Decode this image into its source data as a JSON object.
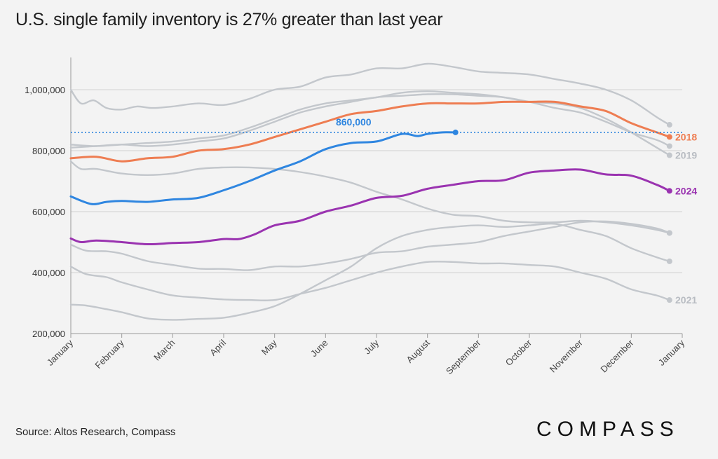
{
  "title": "U.S. single family inventory is 27% greater than last year",
  "source": "Source: Altos Research, Compass",
  "brand": "COMPASS",
  "colors": {
    "gray": "#c3c7cc",
    "orange": "#ee7d52",
    "blue": "#2f86e0",
    "purple": "#9a33b0",
    "reference": "#2f86e0",
    "gray_label": "#b8bcc2"
  },
  "chart_data": {
    "type": "line",
    "title": "U.S. single family inventory is 27% greater than last year",
    "xlabel": "",
    "ylabel": "",
    "ylim": [
      180000,
      1120000
    ],
    "x_domain": [
      0,
      12
    ],
    "y_ticks": [
      200000,
      400000,
      600000,
      800000,
      1000000
    ],
    "y_tick_labels": [
      "200,000",
      "400,000",
      "600,000",
      "800,000",
      "1,000,000"
    ],
    "x_ticks": [
      0,
      1,
      2,
      3,
      4,
      5,
      6,
      7,
      8,
      9,
      10,
      11,
      12
    ],
    "x_tick_labels": [
      "January",
      "February",
      "March",
      "April",
      "May",
      "June",
      "July",
      "August",
      "September",
      "October",
      "November",
      "December",
      "January"
    ],
    "reference_line": {
      "value": 860000,
      "label": "860,000"
    },
    "grid": true,
    "series": [
      {
        "name": "",
        "style": "gray",
        "end_marker": true,
        "x": [
          0,
          0.2,
          0.45,
          0.7,
          1,
          1.3,
          1.6,
          2,
          2.5,
          3,
          3.5,
          4,
          4.5,
          5,
          5.5,
          6,
          6.5,
          7,
          7.5,
          8,
          8.5,
          9,
          9.5,
          10,
          10.5,
          11,
          11.5,
          11.75
        ],
        "values": [
          1000000,
          955000,
          965000,
          940000,
          935000,
          945000,
          940000,
          945000,
          955000,
          950000,
          970000,
          1000000,
          1010000,
          1040000,
          1050000,
          1070000,
          1070000,
          1085000,
          1075000,
          1060000,
          1055000,
          1050000,
          1035000,
          1020000,
          1000000,
          965000,
          910000,
          885000
        ]
      },
      {
        "name": "2018",
        "label": "2018",
        "style": "orange",
        "end_marker": true,
        "x": [
          0,
          0.5,
          1,
          1.5,
          2,
          2.5,
          3,
          3.5,
          4,
          4.5,
          5,
          5.5,
          6,
          6.5,
          7,
          7.5,
          8,
          8.5,
          9,
          9.5,
          10,
          10.5,
          11,
          11.5,
          11.75
        ],
        "values": [
          775000,
          780000,
          765000,
          775000,
          780000,
          800000,
          805000,
          820000,
          845000,
          870000,
          895000,
          920000,
          930000,
          945000,
          955000,
          955000,
          955000,
          960000,
          960000,
          960000,
          945000,
          930000,
          890000,
          860000,
          845000
        ]
      },
      {
        "name": "2019",
        "label": "2019",
        "style": "gray",
        "end_marker": true,
        "x": [
          0,
          0.5,
          1,
          1.5,
          2,
          2.5,
          3,
          3.5,
          4,
          4.5,
          5,
          5.5,
          6,
          6.5,
          7,
          7.5,
          8,
          8.5,
          9,
          9.5,
          10,
          10.5,
          11,
          11.5,
          11.75
        ],
        "values": [
          820000,
          815000,
          820000,
          825000,
          830000,
          840000,
          850000,
          875000,
          905000,
          935000,
          955000,
          965000,
          975000,
          990000,
          995000,
          990000,
          985000,
          975000,
          960000,
          955000,
          940000,
          905000,
          860000,
          810000,
          785000
        ]
      },
      {
        "name": "",
        "style": "gray",
        "end_marker": true,
        "x": [
          0,
          0.5,
          1,
          1.5,
          2,
          2.5,
          3,
          3.5,
          4,
          4.5,
          5,
          5.5,
          6,
          6.5,
          7,
          7.5,
          8,
          8.5,
          9,
          9.5,
          10,
          10.5,
          11,
          11.5,
          11.75
        ],
        "values": [
          810000,
          815000,
          820000,
          815000,
          820000,
          830000,
          840000,
          865000,
          895000,
          925000,
          945000,
          960000,
          975000,
          980000,
          985000,
          985000,
          980000,
          975000,
          960000,
          940000,
          925000,
          895000,
          860000,
          835000,
          815000
        ]
      },
      {
        "name": "",
        "style": "gray",
        "end_marker": true,
        "x": [
          0,
          0.2,
          0.5,
          1,
          1.5,
          2,
          2.5,
          3,
          3.5,
          4,
          4.5,
          5,
          5.5,
          6,
          6.5,
          7,
          7.5,
          8,
          8.5,
          9,
          9.5,
          10,
          10.5,
          11,
          11.5,
          11.75
        ],
        "values": [
          765000,
          740000,
          740000,
          725000,
          720000,
          725000,
          740000,
          745000,
          745000,
          740000,
          730000,
          715000,
          695000,
          665000,
          640000,
          610000,
          590000,
          585000,
          570000,
          565000,
          565000,
          570000,
          565000,
          555000,
          540000,
          530000
        ]
      },
      {
        "name": "2024",
        "label": "2024",
        "style": "purple",
        "end_marker": true,
        "x": [
          0,
          0.2,
          0.5,
          1,
          1.5,
          2,
          2.5,
          3,
          3.3,
          3.6,
          4,
          4.5,
          5,
          5.5,
          6,
          6.5,
          7,
          7.5,
          8,
          8.5,
          9,
          9.5,
          10,
          10.5,
          11,
          11.5,
          11.75
        ],
        "values": [
          512000,
          500000,
          505000,
          500000,
          493000,
          497000,
          500000,
          510000,
          510000,
          525000,
          555000,
          570000,
          600000,
          620000,
          645000,
          652000,
          675000,
          688000,
          700000,
          703000,
          728000,
          735000,
          738000,
          722000,
          718000,
          688000,
          668000
        ]
      },
      {
        "name": "",
        "style": "blue",
        "end_marker": true,
        "x": [
          0,
          0.4,
          0.7,
          1,
          1.5,
          2,
          2.5,
          3,
          3.5,
          4,
          4.5,
          5,
          5.5,
          6,
          6.5,
          6.8,
          7,
          7.3,
          7.55
        ],
        "values": [
          650000,
          625000,
          632000,
          635000,
          632000,
          640000,
          645000,
          670000,
          700000,
          735000,
          765000,
          805000,
          825000,
          830000,
          855000,
          848000,
          855000,
          860000,
          860000
        ]
      },
      {
        "name": "",
        "style": "gray",
        "end_marker": true,
        "x": [
          0,
          0.3,
          0.7,
          1,
          1.5,
          2,
          2.5,
          3,
          3.5,
          4,
          4.5,
          5,
          5.5,
          6,
          6.5,
          7,
          7.5,
          8,
          8.5,
          9,
          9.5,
          10,
          10.5,
          11,
          11.5,
          11.75
        ],
        "values": [
          492000,
          472000,
          470000,
          462000,
          438000,
          425000,
          413000,
          412000,
          408000,
          420000,
          420000,
          430000,
          445000,
          465000,
          470000,
          485000,
          492000,
          500000,
          520000,
          535000,
          550000,
          565000,
          568000,
          560000,
          545000,
          530000
        ]
      },
      {
        "name": "",
        "style": "gray",
        "end_marker": true,
        "x": [
          0,
          0.3,
          0.7,
          1,
          1.5,
          2,
          2.5,
          3,
          3.5,
          4,
          4.5,
          5,
          5.5,
          6,
          6.5,
          7,
          7.5,
          8,
          8.5,
          9,
          9.5,
          10,
          10.5,
          11,
          11.5,
          11.75
        ],
        "values": [
          420000,
          395000,
          385000,
          368000,
          345000,
          325000,
          318000,
          312000,
          310000,
          310000,
          330000,
          350000,
          375000,
          400000,
          420000,
          435000,
          435000,
          430000,
          430000,
          425000,
          420000,
          400000,
          380000,
          345000,
          325000,
          310000
        ]
      },
      {
        "name": "",
        "style": "gray",
        "end_marker": true,
        "x": [
          0,
          0.3,
          0.7,
          1,
          1.5,
          2,
          2.5,
          3,
          3.5,
          4,
          4.5,
          5,
          5.5,
          6,
          6.5,
          7,
          7.5,
          8,
          8.5,
          9,
          9.5,
          10,
          10.5,
          11,
          11.5,
          11.75
        ],
        "values": [
          295000,
          292000,
          280000,
          270000,
          250000,
          245000,
          248000,
          252000,
          268000,
          290000,
          330000,
          375000,
          420000,
          480000,
          520000,
          540000,
          550000,
          555000,
          550000,
          555000,
          560000,
          540000,
          520000,
          480000,
          450000,
          437000
        ]
      }
    ],
    "series_labels": {
      "2018": "2018",
      "2019": "2019",
      "2024": "2024",
      "2021": "2021"
    },
    "extra_label_2021": "2021"
  }
}
